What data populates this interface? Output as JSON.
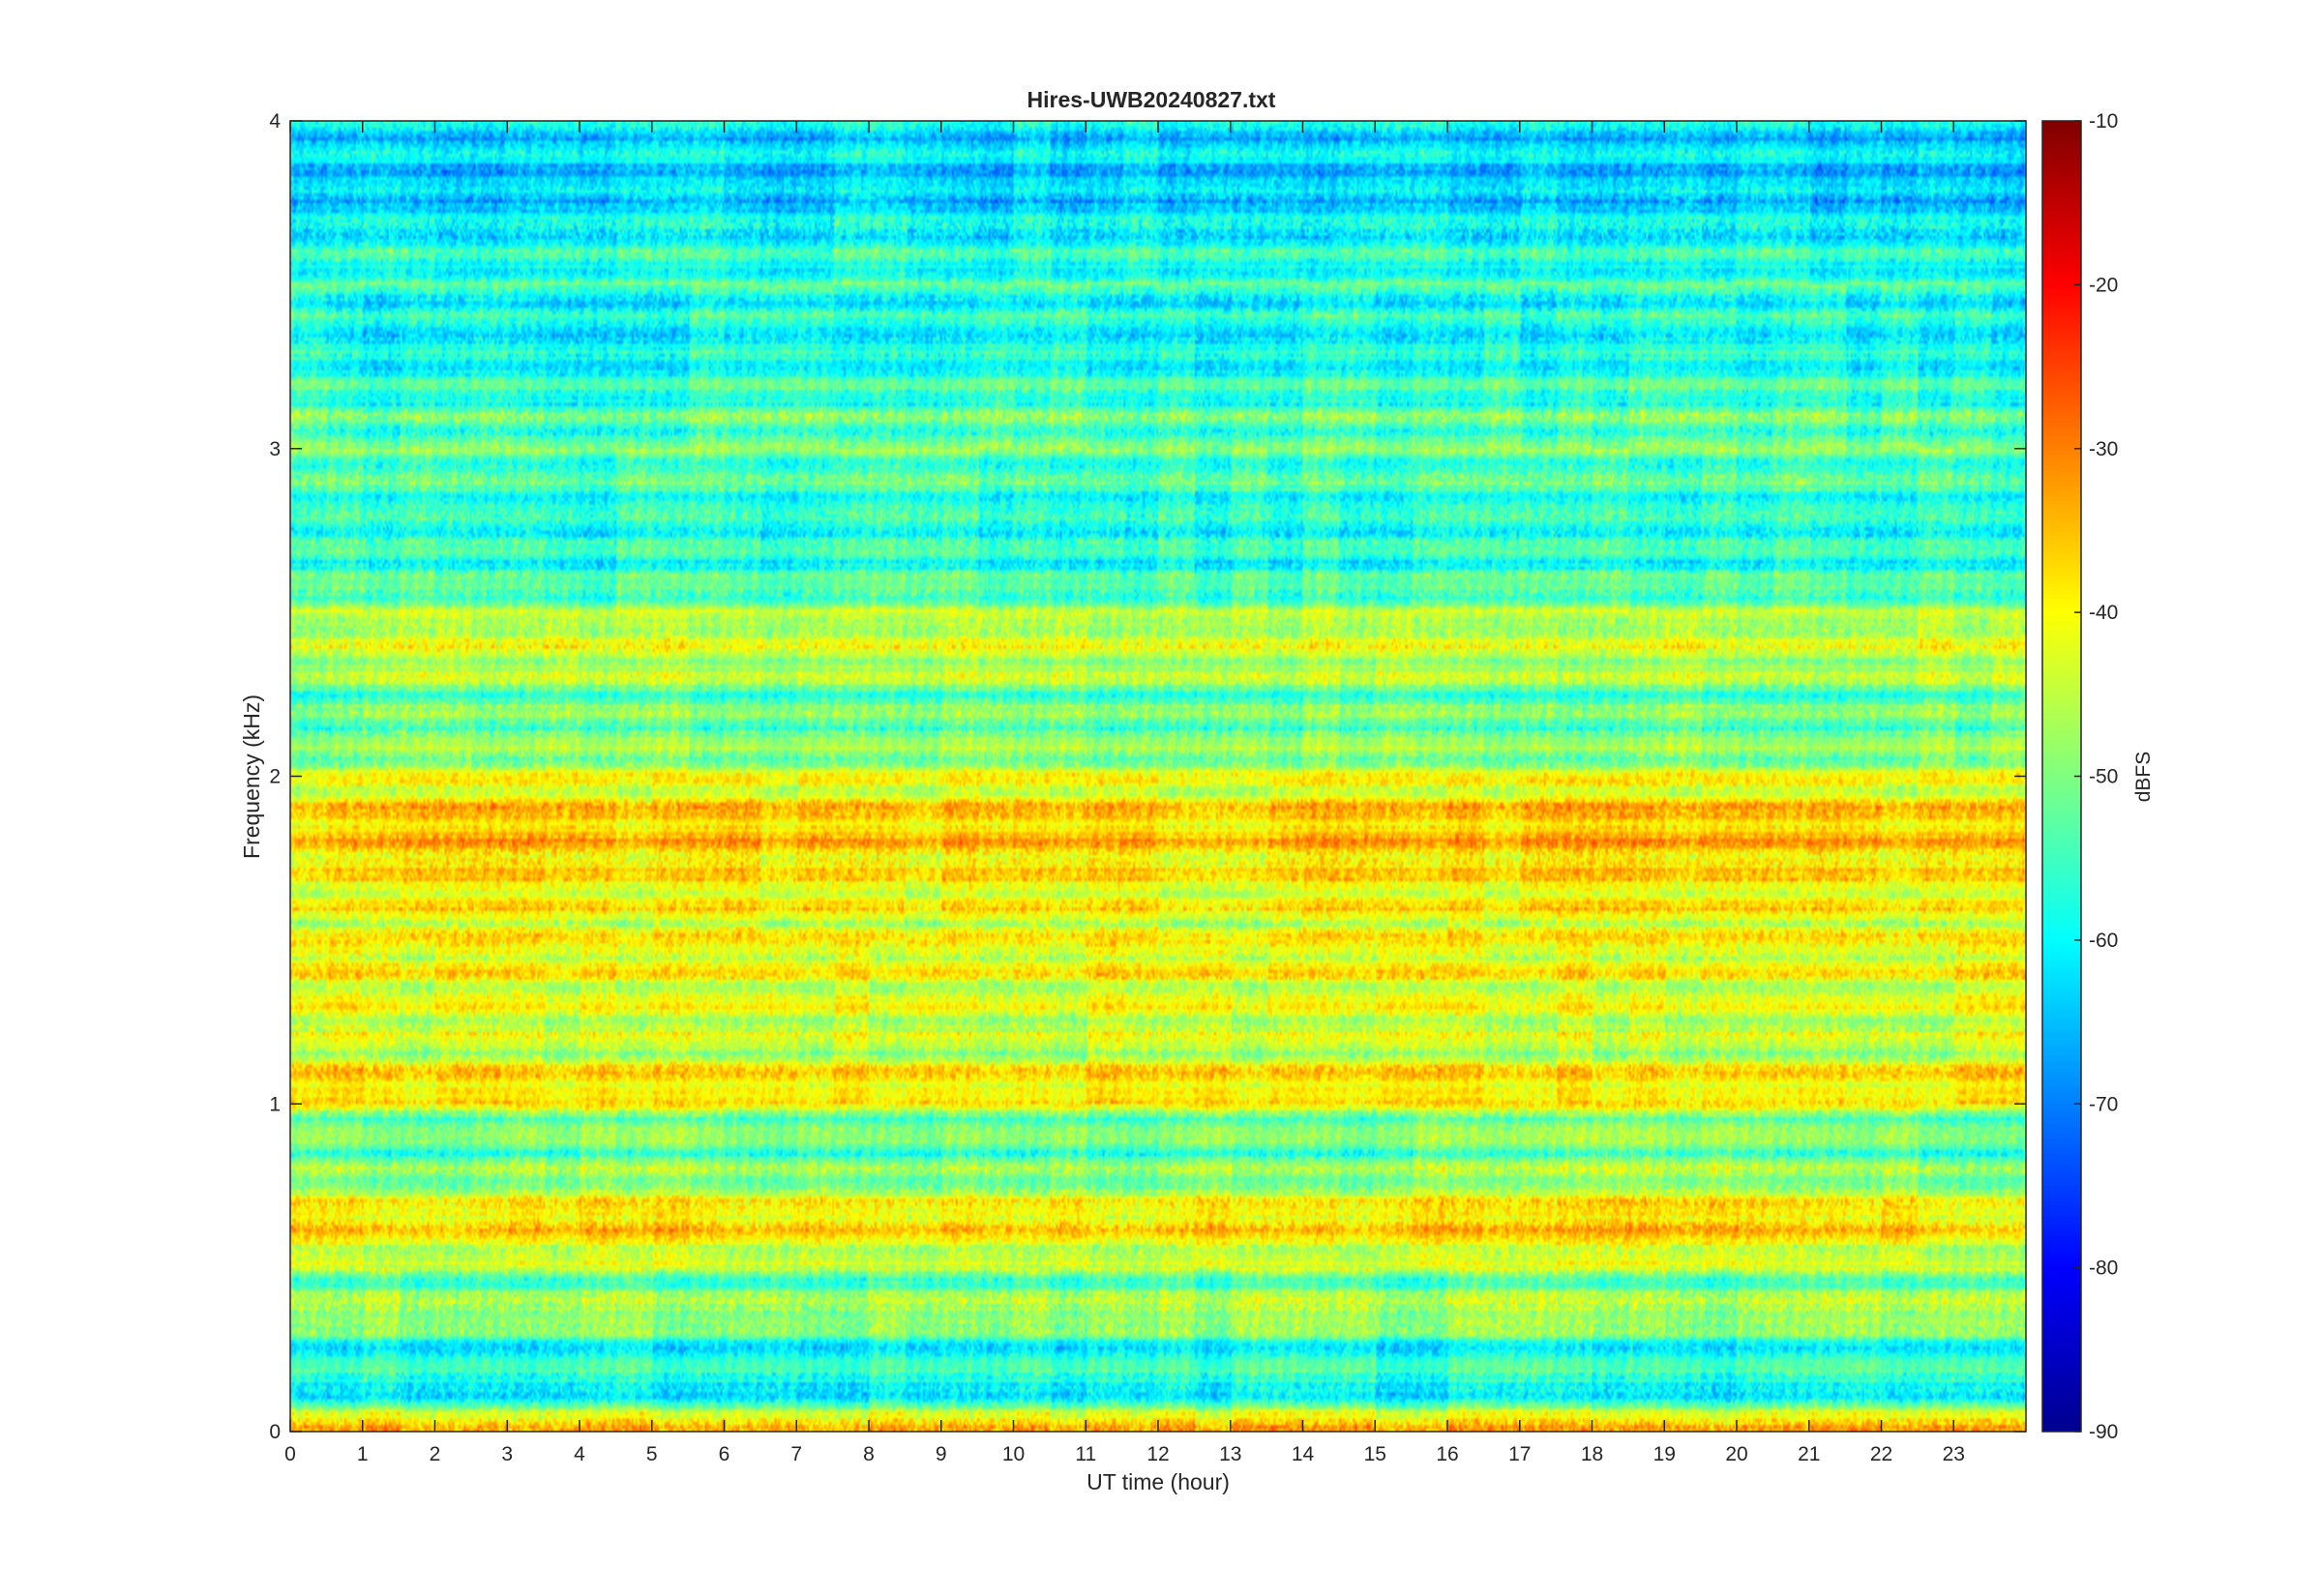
{
  "chart_data": {
    "type": "heatmap",
    "title": "Hires-UWB20240827.txt",
    "xlabel": "UT time (hour)",
    "ylabel": "Frequency (kHz)",
    "xlim": [
      0,
      24
    ],
    "ylim": [
      0,
      4
    ],
    "x_ticks": [
      "0",
      "1",
      "2",
      "3",
      "4",
      "5",
      "6",
      "7",
      "8",
      "9",
      "10",
      "11",
      "12",
      "13",
      "14",
      "15",
      "16",
      "17",
      "18",
      "19",
      "20",
      "21",
      "22",
      "23"
    ],
    "y_ticks": [
      "0",
      "1",
      "2",
      "3",
      "4"
    ],
    "colorbar": {
      "label": "dBFS",
      "range": [
        -90,
        -10
      ],
      "ticks": [
        "-90",
        "-80",
        "-70",
        "-60",
        "-50",
        "-40",
        "-30",
        "-20",
        "-10"
      ],
      "colormap": "jet"
    },
    "band_levels_db": [
      {
        "freq_khz": 0.05,
        "db": -38
      },
      {
        "freq_khz": 0.1,
        "db": -66
      },
      {
        "freq_khz": 0.15,
        "db": -54
      },
      {
        "freq_khz": 0.25,
        "db": -60
      },
      {
        "freq_khz": 0.35,
        "db": -45
      },
      {
        "freq_khz": 0.45,
        "db": -52
      },
      {
        "freq_khz": 0.55,
        "db": -42
      },
      {
        "freq_khz": 0.65,
        "db": -36
      },
      {
        "freq_khz": 0.75,
        "db": -48
      },
      {
        "freq_khz": 0.85,
        "db": -52
      },
      {
        "freq_khz": 0.95,
        "db": -50
      },
      {
        "freq_khz": 1.05,
        "db": -36
      },
      {
        "freq_khz": 1.15,
        "db": -46
      },
      {
        "freq_khz": 1.25,
        "db": -44
      },
      {
        "freq_khz": 1.35,
        "db": -42
      },
      {
        "freq_khz": 1.45,
        "db": -40
      },
      {
        "freq_khz": 1.55,
        "db": -42
      },
      {
        "freq_khz": 1.65,
        "db": -40
      },
      {
        "freq_khz": 1.75,
        "db": -38
      },
      {
        "freq_khz": 1.85,
        "db": -35
      },
      {
        "freq_khz": 1.95,
        "db": -40
      },
      {
        "freq_khz": 2.1,
        "db": -50
      },
      {
        "freq_khz": 2.25,
        "db": -52
      },
      {
        "freq_khz": 2.35,
        "db": -44
      },
      {
        "freq_khz": 2.45,
        "db": -44
      },
      {
        "freq_khz": 2.6,
        "db": -56
      },
      {
        "freq_khz": 2.8,
        "db": -58
      },
      {
        "freq_khz": 3.05,
        "db": -52
      },
      {
        "freq_khz": 3.3,
        "db": -60
      },
      {
        "freq_khz": 3.55,
        "db": -56
      },
      {
        "freq_khz": 3.8,
        "db": -64
      },
      {
        "freq_khz": 4.0,
        "db": -62
      }
    ]
  }
}
